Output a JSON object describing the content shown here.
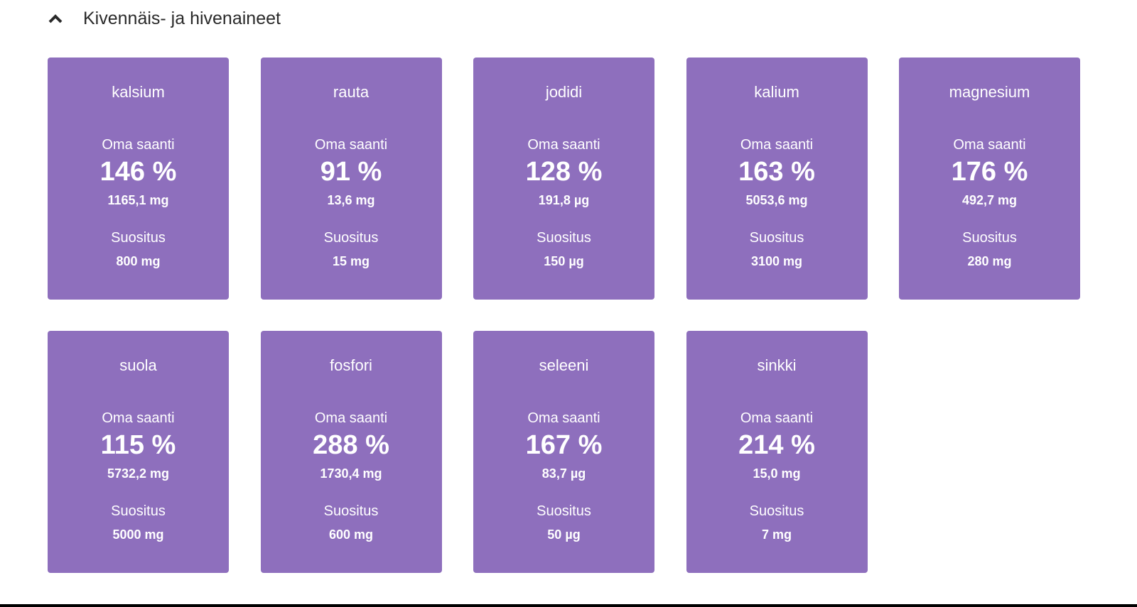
{
  "section": {
    "title": "Kivennäis- ja hivenaineet",
    "icon": "chevron-up-icon",
    "card_color": "#8e6fbd"
  },
  "labels": {
    "own_intake": "Oma saanti",
    "recommendation": "Suositus"
  },
  "cards": [
    {
      "name": "kalsium",
      "percent": "146 %",
      "amount": "1165,1 mg",
      "recommended": "800 mg"
    },
    {
      "name": "rauta",
      "percent": "91 %",
      "amount": "13,6 mg",
      "recommended": "15 mg"
    },
    {
      "name": "jodidi",
      "percent": "128 %",
      "amount": "191,8 µg",
      "recommended": "150 µg"
    },
    {
      "name": "kalium",
      "percent": "163 %",
      "amount": "5053,6 mg",
      "recommended": "3100 mg"
    },
    {
      "name": "magnesium",
      "percent": "176 %",
      "amount": "492,7 mg",
      "recommended": "280 mg"
    },
    {
      "name": "suola",
      "percent": "115 %",
      "amount": "5732,2 mg",
      "recommended": "5000 mg"
    },
    {
      "name": "fosfori",
      "percent": "288 %",
      "amount": "1730,4 mg",
      "recommended": "600 mg"
    },
    {
      "name": "seleeni",
      "percent": "167 %",
      "amount": "83,7 µg",
      "recommended": "50 µg"
    },
    {
      "name": "sinkki",
      "percent": "214 %",
      "amount": "15,0 mg",
      "recommended": "7 mg"
    }
  ]
}
